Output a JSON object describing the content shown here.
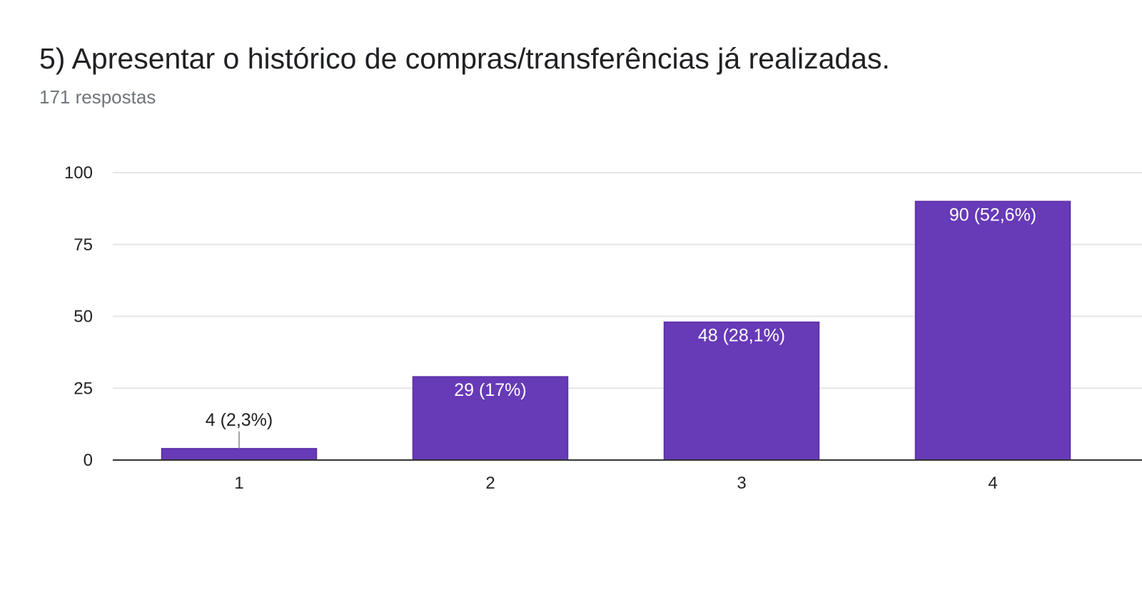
{
  "header": {
    "title": "5) Apresentar o histórico de compras/transferências já realizadas.",
    "responses": "171 respostas"
  },
  "chart_data": {
    "type": "bar",
    "categories": [
      "1",
      "2",
      "3",
      "4"
    ],
    "values": [
      4,
      29,
      48,
      90
    ],
    "data_labels": [
      "4 (2,3%)",
      "29 (17%)",
      "48 (28,1%)",
      "90 (52,6%)"
    ],
    "ylim": [
      0,
      100
    ],
    "yticks": [
      0,
      25,
      50,
      75,
      100
    ],
    "grid": true,
    "legend": "none",
    "xlabel": "",
    "ylabel": "",
    "colors": {
      "bar": "#673ab7",
      "bar_edge": "#5a2ea6",
      "inside_label": "#ffffff",
      "outside_label": "#222222",
      "grid": "#e6e6e6",
      "axis": "#333333"
    }
  }
}
